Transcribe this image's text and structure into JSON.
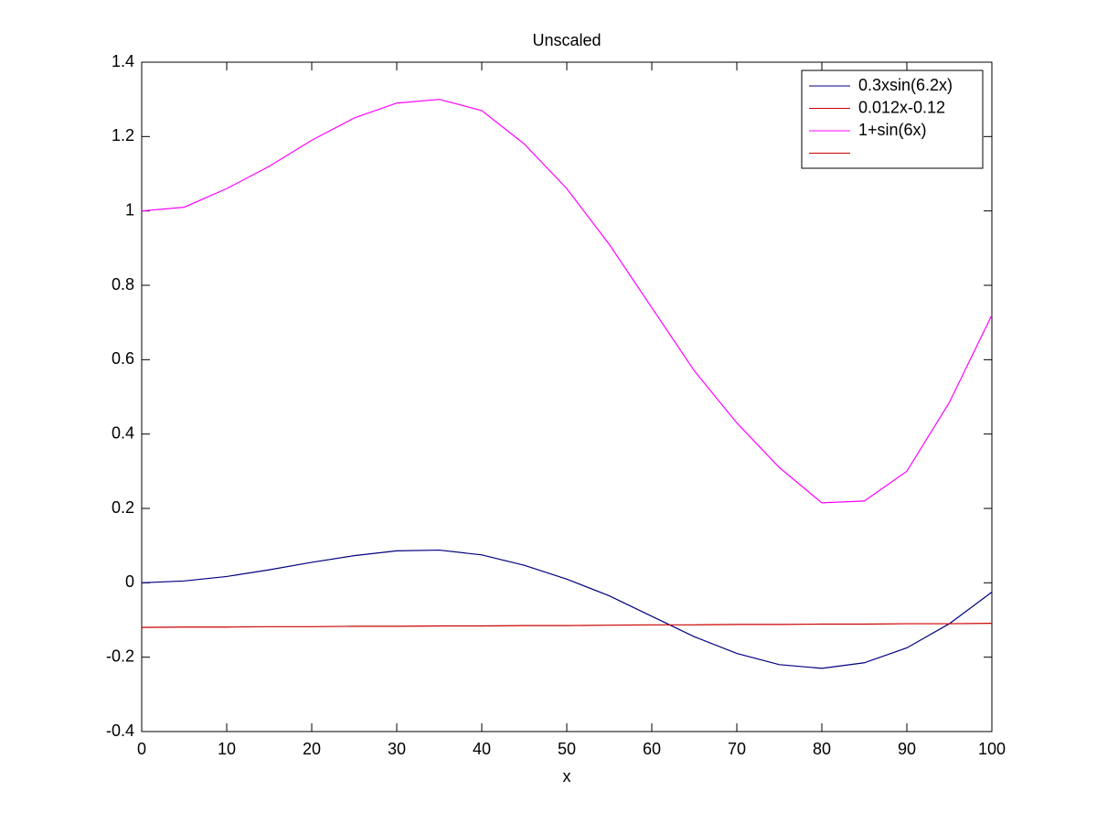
{
  "chart_data": {
    "type": "line",
    "title": "Unscaled",
    "x_label": "x",
    "x": [
      0,
      5,
      10,
      15,
      20,
      25,
      30,
      35,
      40,
      45,
      50,
      55,
      60,
      65,
      70,
      75,
      80,
      85,
      90,
      95,
      100
    ],
    "series": [
      {
        "name": "0.3xsin(6.2x)",
        "color": "#00007f",
        "values": [
          0,
          0.005,
          0.017,
          0.035,
          0.055,
          0.073,
          0.086,
          0.088,
          0.075,
          0.047,
          0.01,
          -0.035,
          -0.09,
          -0.145,
          -0.19,
          -0.22,
          -0.23,
          -0.215,
          -0.175,
          -0.11,
          -0.025
        ]
      },
      {
        "name": "0.012x-0.12",
        "color": "#cc0000",
        "values": [
          -0.12,
          -0.119,
          -0.119,
          -0.118,
          -0.118,
          -0.117,
          -0.117,
          -0.116,
          -0.116,
          -0.115,
          -0.115,
          -0.114,
          -0.113,
          -0.113,
          -0.112,
          -0.112,
          -0.111,
          -0.111,
          -0.11,
          -0.11,
          -0.109
        ]
      },
      {
        "name": "1+sin(6x)",
        "color": "#ff00ff",
        "values": [
          1.0,
          1.01,
          1.06,
          1.12,
          1.19,
          1.25,
          1.29,
          1.3,
          1.27,
          1.18,
          1.06,
          0.91,
          0.74,
          0.57,
          0.43,
          0.31,
          0.215,
          0.22,
          0.3,
          0.485,
          0.72
        ]
      }
    ],
    "xlim": [
      0,
      100
    ],
    "xticks": [
      0,
      10,
      20,
      30,
      40,
      50,
      60,
      70,
      80,
      90,
      100
    ],
    "ylim": [
      -0.4,
      1.4
    ],
    "yticks": [
      -0.4,
      -0.2,
      0,
      0.2,
      0.4,
      0.6,
      0.8,
      1,
      1.2,
      1.4
    ],
    "grid": false,
    "legend": "upper right"
  }
}
